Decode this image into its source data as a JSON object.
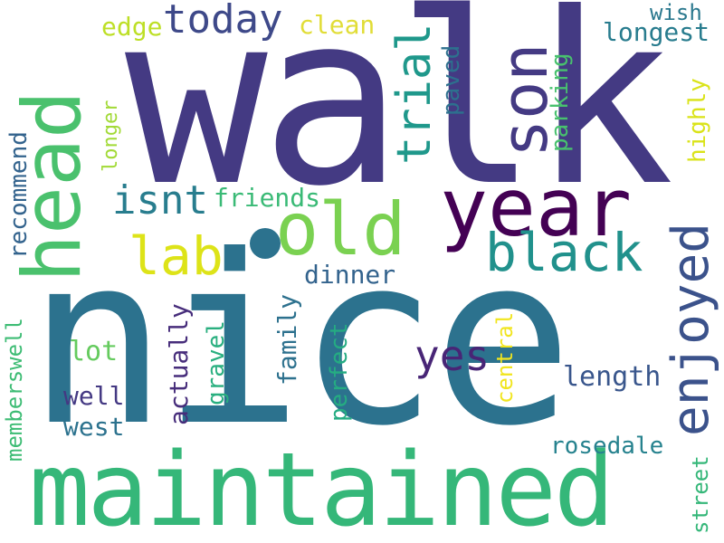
{
  "words": [
    {
      "id": "walk",
      "text": "walk",
      "color": "#443a83"
    },
    {
      "id": "nice",
      "text": "nice",
      "color": "#2c728e"
    },
    {
      "id": "maintained",
      "text": "maintained",
      "color": "#35b779"
    },
    {
      "id": "head",
      "text": "head",
      "color": "#4ac16d"
    },
    {
      "id": "year",
      "text": "year",
      "color": "#440154"
    },
    {
      "id": "son",
      "text": "son",
      "color": "#443a83"
    },
    {
      "id": "old",
      "text": "old",
      "color": "#7ad151"
    },
    {
      "id": "black",
      "text": "black",
      "color": "#21918c"
    },
    {
      "id": "enjoyed",
      "text": "enjoyed",
      "color": "#3b528b"
    },
    {
      "id": "trial",
      "text": "trial",
      "color": "#1f988b"
    },
    {
      "id": "lab",
      "text": "lab",
      "color": "#dde318"
    },
    {
      "id": "today",
      "text": "today",
      "color": "#3e4989"
    },
    {
      "id": "isnt",
      "text": "isnt",
      "color": "#287d8e"
    },
    {
      "id": "yes",
      "text": "yes",
      "color": "#482576"
    },
    {
      "id": "friends",
      "text": "friends",
      "color": "#3aba76"
    },
    {
      "id": "edge",
      "text": "edge",
      "color": "#bddf26"
    },
    {
      "id": "clean",
      "text": "clean",
      "color": "#e1dd37"
    },
    {
      "id": "wish",
      "text": "wish",
      "color": "#2a788e"
    },
    {
      "id": "longest",
      "text": "longest",
      "color": "#287c8e"
    },
    {
      "id": "paved",
      "text": "paved",
      "color": "#2d708e"
    },
    {
      "id": "parking",
      "text": "parking",
      "color": "#48c16e"
    },
    {
      "id": "highly",
      "text": "highly",
      "color": "#dae319"
    },
    {
      "id": "recommend",
      "text": "recommend",
      "color": "#33638d"
    },
    {
      "id": "longer",
      "text": "longer",
      "color": "#a2da37"
    },
    {
      "id": "dinner",
      "text": "dinner",
      "color": "#33638d"
    },
    {
      "id": "central",
      "text": "central",
      "color": "#f1e51d"
    },
    {
      "id": "lot",
      "text": "lot",
      "color": "#65cb5e"
    },
    {
      "id": "family",
      "text": "family",
      "color": "#2d718e"
    },
    {
      "id": "perfect",
      "text": "perfect",
      "color": "#25ac82"
    },
    {
      "id": "length",
      "text": "length",
      "color": "#39568c"
    },
    {
      "id": "actually",
      "text": "actually",
      "color": "#472d7b"
    },
    {
      "id": "gravel",
      "text": "gravel",
      "color": "#29af7f"
    },
    {
      "id": "well",
      "text": "well",
      "color": "#443983"
    },
    {
      "id": "west",
      "text": "west",
      "color": "#2c728e"
    },
    {
      "id": "memberswell",
      "text": "memberswell",
      "color": "#3dbc74"
    },
    {
      "id": "rosedale",
      "text": "rosedale",
      "color": "#26828e"
    },
    {
      "id": "street",
      "text": "street",
      "color": "#35b779"
    }
  ],
  "dot_color": "#2c728e"
}
